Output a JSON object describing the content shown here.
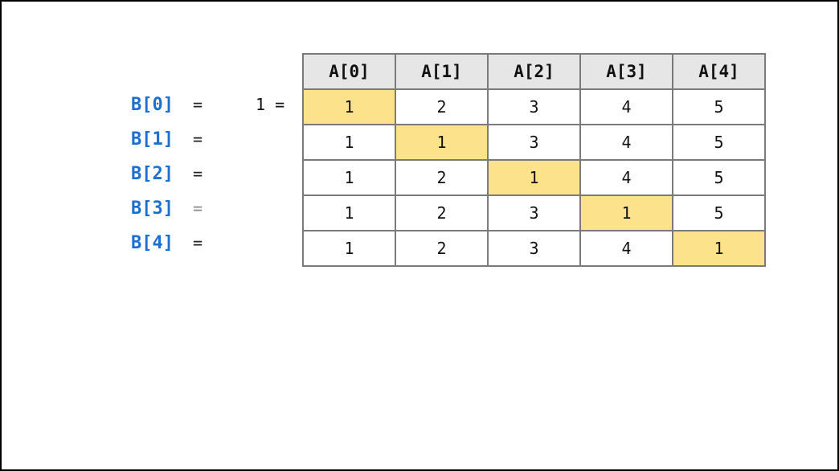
{
  "colors": {
    "label_blue": "#1a6fd1",
    "highlight": "#fde28c",
    "header_bg": "#e6e6e6",
    "border": "#7a7a7a"
  },
  "prefix_text": "1 =",
  "headers": [
    "A[0]",
    "A[1]",
    "A[2]",
    "A[3]",
    "A[4]"
  ],
  "rows": [
    {
      "label": "B[0]",
      "eq": "=",
      "cells": [
        "1",
        "2",
        "3",
        "4",
        "5"
      ],
      "highlight_index": 0
    },
    {
      "label": "B[1]",
      "eq": "=",
      "cells": [
        "1",
        "1",
        "3",
        "4",
        "5"
      ],
      "highlight_index": 1
    },
    {
      "label": "B[2]",
      "eq": "=",
      "cells": [
        "1",
        "2",
        "1",
        "4",
        "5"
      ],
      "highlight_index": 2
    },
    {
      "label": "B[3]",
      "eq": "=",
      "cells": [
        "1",
        "2",
        "3",
        "1",
        "5"
      ],
      "highlight_index": 3,
      "eq_muted": true
    },
    {
      "label": "B[4]",
      "eq": "=",
      "cells": [
        "1",
        "2",
        "3",
        "4",
        "1"
      ],
      "highlight_index": 4
    }
  ]
}
